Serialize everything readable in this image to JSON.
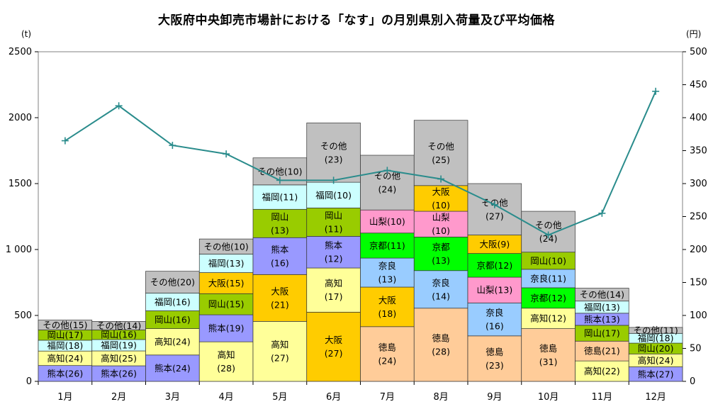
{
  "chart_data": {
    "type": "bar",
    "stacked": true,
    "title": "大阪府中央卸売市場計における「なす」の月別県別入荷量及び平均価格",
    "y_left_unit": "(t)",
    "y_right_unit": "(円)",
    "y_left_ticks": [
      "0",
      "500",
      "1 000",
      "1500",
      "2000",
      "2500"
    ],
    "y_right_ticks": [
      "0",
      "50",
      "100",
      "150",
      "200",
      "250",
      "300",
      "350",
      "400",
      "450",
      "500"
    ],
    "ylim_left": [
      0,
      2500
    ],
    "ylim_right": [
      0,
      500
    ],
    "grid": false,
    "categories": [
      "1月",
      "2月",
      "3月",
      "4月",
      "5月",
      "6月",
      "7月",
      "8月",
      "9月",
      "10月",
      "11月",
      "12月"
    ],
    "bars": [
      {
        "month": "1月",
        "segments": [
          {
            "pref": "熊本",
            "label": "熊本(26)",
            "value": 120
          },
          {
            "pref": "高知",
            "label": "高知(24)",
            "value": 110
          },
          {
            "pref": "福岡",
            "label": "福岡(18)",
            "value": 82
          },
          {
            "pref": "岡山",
            "label": "岡山(17)",
            "value": 78
          },
          {
            "pref": "その他",
            "label": "その他(15)",
            "value": 75
          }
        ]
      },
      {
        "month": "2月",
        "segments": [
          {
            "pref": "熊本",
            "label": "熊本(26)",
            "value": 118
          },
          {
            "pref": "高知",
            "label": "高知(25)",
            "value": 113
          },
          {
            "pref": "福岡",
            "label": "福岡(19)",
            "value": 86
          },
          {
            "pref": "岡山",
            "label": "岡山(16)",
            "value": 73
          },
          {
            "pref": "その他",
            "label": "その他(14)",
            "value": 65
          }
        ]
      },
      {
        "month": "3月",
        "segments": [
          {
            "pref": "熊本",
            "label": "熊本(24)",
            "value": 200
          },
          {
            "pref": "高知",
            "label": "高知(24)",
            "value": 200
          },
          {
            "pref": "岡山",
            "label": "岡山(16)",
            "value": 135
          },
          {
            "pref": "福岡",
            "label": "福岡(16)",
            "value": 135
          },
          {
            "pref": "その他",
            "label": "その他(20)",
            "value": 165
          }
        ]
      },
      {
        "month": "4月",
        "segments": [
          {
            "pref": "高知",
            "label": "高知|(28)",
            "value": 300
          },
          {
            "pref": "熊本",
            "label": "熊本(19)",
            "value": 205
          },
          {
            "pref": "岡山",
            "label": "岡山(15)",
            "value": 160
          },
          {
            "pref": "大阪",
            "label": "大阪(15)",
            "value": 160
          },
          {
            "pref": "福岡",
            "label": "福岡(13)",
            "value": 140
          },
          {
            "pref": "その他",
            "label": "その他(10)",
            "value": 115
          }
        ]
      },
      {
        "month": "5月",
        "segments": [
          {
            "pref": "高知",
            "label": "高知|(27)",
            "value": 455
          },
          {
            "pref": "大阪",
            "label": "大阪|(21)",
            "value": 355
          },
          {
            "pref": "熊本",
            "label": "熊本|(16)",
            "value": 280
          },
          {
            "pref": "岡山",
            "label": "岡山|(13)",
            "value": 215
          },
          {
            "pref": "福岡",
            "label": "福岡(11)",
            "value": 185
          },
          {
            "pref": "その他",
            "label": "その他(10)",
            "value": 205
          }
        ]
      },
      {
        "month": "6月",
        "segments": [
          {
            "pref": "大阪",
            "label": "大阪|(27)",
            "value": 525
          },
          {
            "pref": "高知",
            "label": "高知|(17)",
            "value": 335
          },
          {
            "pref": "熊本",
            "label": "熊本|(12)",
            "value": 240
          },
          {
            "pref": "岡山",
            "label": "岡山|(11)",
            "value": 215
          },
          {
            "pref": "福岡",
            "label": "福岡(10)",
            "value": 195
          },
          {
            "pref": "その他",
            "label": "その他|(23)",
            "value": 450
          }
        ]
      },
      {
        "month": "7月",
        "segments": [
          {
            "pref": "徳島",
            "label": "徳島|(24)",
            "value": 415
          },
          {
            "pref": "大阪",
            "label": "大阪|(18)",
            "value": 300
          },
          {
            "pref": "奈良",
            "label": "奈良|(13)",
            "value": 220
          },
          {
            "pref": "京都",
            "label": "京都(11)",
            "value": 190
          },
          {
            "pref": "山梨",
            "label": "山梨(10)",
            "value": 175
          },
          {
            "pref": "その他",
            "label": "その他|(24)",
            "value": 415
          }
        ]
      },
      {
        "month": "8月",
        "segments": [
          {
            "pref": "徳島",
            "label": "徳島|(28)",
            "value": 555
          },
          {
            "pref": "奈良",
            "label": "奈良|(14)",
            "value": 285
          },
          {
            "pref": "京都",
            "label": "京都|(13)",
            "value": 255
          },
          {
            "pref": "山梨",
            "label": "山梨|(10)",
            "value": 195
          },
          {
            "pref": "大阪",
            "label": "大阪|(10)",
            "value": 195
          },
          {
            "pref": "その他",
            "label": "その他|(25)",
            "value": 495
          }
        ]
      },
      {
        "month": "9月",
        "segments": [
          {
            "pref": "徳島",
            "label": "徳島|(23)",
            "value": 345
          },
          {
            "pref": "奈良",
            "label": "奈良|(16)",
            "value": 250
          },
          {
            "pref": "山梨",
            "label": "山梨(13)",
            "value": 195
          },
          {
            "pref": "京都",
            "label": "京都(12)",
            "value": 180
          },
          {
            "pref": "大阪",
            "label": "大阪(9)",
            "value": 140
          },
          {
            "pref": "その他",
            "label": "その他|(27)",
            "value": 390
          }
        ]
      },
      {
        "month": "10月",
        "segments": [
          {
            "pref": "徳島",
            "label": "徳島|(31)",
            "value": 400
          },
          {
            "pref": "高知",
            "label": "高知(12)",
            "value": 155
          },
          {
            "pref": "京都",
            "label": "京都(12)",
            "value": 155
          },
          {
            "pref": "奈良",
            "label": "奈良(11)",
            "value": 140
          },
          {
            "pref": "岡山",
            "label": "岡山(10)",
            "value": 130
          },
          {
            "pref": "その他",
            "label": "その他|(24)",
            "value": 310
          }
        ]
      },
      {
        "month": "11月",
        "segments": [
          {
            "pref": "高知",
            "label": "高知(22)",
            "value": 155
          },
          {
            "pref": "徳島",
            "label": "徳島(21)",
            "value": 150
          },
          {
            "pref": "岡山",
            "label": "岡山(17)",
            "value": 120
          },
          {
            "pref": "熊本",
            "label": "熊本(13)",
            "value": 92
          },
          {
            "pref": "福岡",
            "label": "福岡(13)",
            "value": 92
          },
          {
            "pref": "その他",
            "label": "その他(14)",
            "value": 98
          }
        ]
      },
      {
        "month": "12月",
        "segments": [
          {
            "pref": "熊本",
            "label": "熊本(27)",
            "value": 110
          },
          {
            "pref": "高知",
            "label": "高知(24)",
            "value": 98
          },
          {
            "pref": "岡山",
            "label": "岡山(20)",
            "value": 82
          },
          {
            "pref": "福岡",
            "label": "福岡(18)",
            "value": 74
          },
          {
            "pref": "その他",
            "label": "その他(11)",
            "value": 45
          }
        ]
      }
    ],
    "price_line": {
      "values": [
        365,
        418,
        358,
        345,
        305,
        305,
        320,
        307,
        268,
        222,
        255,
        440
      ],
      "color": "#2a8c8c"
    },
    "colors": {
      "熊本": "#9999ff",
      "高知": "#ffff99",
      "福岡": "#ccffff",
      "岡山": "#99cc00",
      "大阪": "#ffcc00",
      "徳島": "#ffcc99",
      "奈良": "#99ccff",
      "京都": "#00ff00",
      "山梨": "#ff99cc",
      "その他": "#c0c0c0"
    }
  }
}
